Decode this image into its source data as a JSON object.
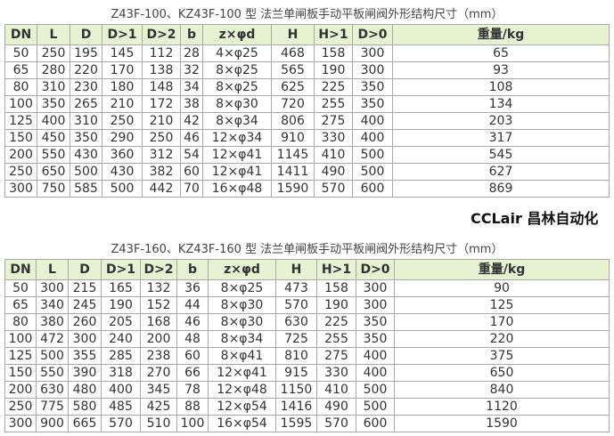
{
  "tables": [
    {
      "title": "Z43F-100、KZ43F-100 型 法兰单闸板手动平板闸阀外形结构尺寸（mm）",
      "headers": [
        "DN",
        "L",
        "D",
        "D>1",
        "D>2",
        "b",
        "z×φd",
        "H",
        "H>1",
        "D>0",
        "重量/kg"
      ],
      "rows": [
        [
          "50",
          "250",
          "195",
          "145",
          "112",
          "28",
          "4×φ25",
          "468",
          "158",
          "300",
          "65"
        ],
        [
          "65",
          "280",
          "220",
          "170",
          "138",
          "32",
          "8×φ25",
          "565",
          "190",
          "300",
          "93"
        ],
        [
          "80",
          "310",
          "230",
          "180",
          "148",
          "34",
          "8×φ25",
          "625",
          "225",
          "350",
          "108"
        ],
        [
          "100",
          "350",
          "265",
          "210",
          "172",
          "38",
          "8×φ30",
          "720",
          "255",
          "350",
          "134"
        ],
        [
          "125",
          "400",
          "310",
          "250",
          "210",
          "42",
          "8×φ34",
          "806",
          "275",
          "400",
          "203"
        ],
        [
          "150",
          "450",
          "350",
          "290",
          "250",
          "46",
          "12×φ34",
          "910",
          "330",
          "400",
          "317"
        ],
        [
          "200",
          "550",
          "430",
          "360",
          "312",
          "54",
          "12×φ41",
          "1145",
          "410",
          "500",
          "545"
        ],
        [
          "250",
          "650",
          "500",
          "430",
          "382",
          "60",
          "12×φ41",
          "1411",
          "490",
          "500",
          "627"
        ],
        [
          "300",
          "750",
          "585",
          "500",
          "442",
          "70",
          "16×φ48",
          "1590",
          "570",
          "600",
          "869"
        ]
      ]
    },
    {
      "title": "Z43F-160、KZ43F-160 型 法兰单闸板手动平板闸阀外形结构尺寸（mm）",
      "headers": [
        "DN",
        "L",
        "D",
        "D>1",
        "D>2",
        "b",
        "z×φd",
        "H",
        "H>1",
        "D>0",
        "重量/kg"
      ],
      "rows": [
        [
          "50",
          "300",
          "215",
          "165",
          "132",
          "36",
          "8×φ25",
          "473",
          "158",
          "300",
          "90"
        ],
        [
          "65",
          "340",
          "245",
          "190",
          "152",
          "44",
          "8×φ30",
          "570",
          "190",
          "300",
          "125"
        ],
        [
          "80",
          "380",
          "260",
          "205",
          "168",
          "46",
          "8×φ30",
          "630",
          "225",
          "350",
          "170"
        ],
        [
          "100",
          "472",
          "300",
          "240",
          "200",
          "48",
          "8×φ34",
          "725",
          "255",
          "350",
          "220"
        ],
        [
          "125",
          "500",
          "355",
          "285",
          "238",
          "60",
          "8×φ41",
          "810",
          "275",
          "400",
          "375"
        ],
        [
          "150",
          "550",
          "390",
          "318",
          "270",
          "66",
          "12×φ41",
          "915",
          "330",
          "400",
          "650"
        ],
        [
          "200",
          "630",
          "480",
          "400",
          "345",
          "78",
          "12×φ48",
          "1150",
          "410",
          "500",
          "840"
        ],
        [
          "250",
          "775",
          "580",
          "485",
          "425",
          "88",
          "12×φ54",
          "1416",
          "490",
          "500",
          "1120"
        ],
        [
          "300",
          "900",
          "665",
          "570",
          "510",
          "100",
          "16×φ54",
          "1595",
          "570",
          "600",
          "1590"
        ]
      ]
    }
  ],
  "watermark": "CCLair 昌林自动化"
}
